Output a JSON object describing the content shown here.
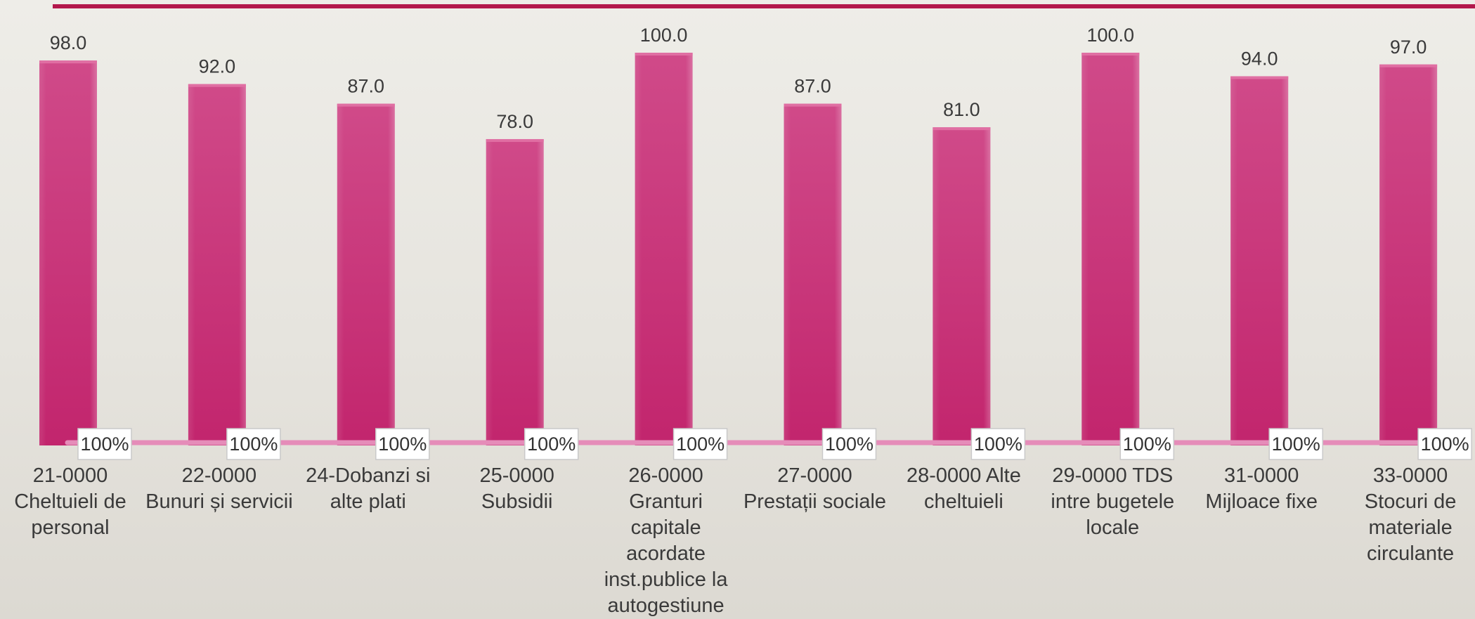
{
  "chart_data": {
    "type": "bar",
    "categories": [
      [
        "21-0000",
        "Cheltuieli de",
        "personal"
      ],
      [
        "22-0000",
        "Bunuri și servicii"
      ],
      [
        "24-Dobanzi si",
        "alte plati"
      ],
      [
        "25-0000",
        "Subsidii"
      ],
      [
        "26-0000",
        "Granturi",
        "capitale",
        "acordate",
        "inst.publice la",
        "autogestiune"
      ],
      [
        "27-0000",
        "Prestații sociale"
      ],
      [
        "28-0000  Alte",
        "cheltuieli"
      ],
      [
        "29-0000 TDS",
        "intre bugetele",
        "locale"
      ],
      [
        "31-0000",
        "Mijloace fixe"
      ],
      [
        "33-0000",
        "Stocuri de",
        "materiale",
        "circulante"
      ]
    ],
    "series": [
      {
        "values": [
          98.0,
          92.0,
          87.0,
          78.0,
          100.0,
          87.0,
          81.0,
          100.0,
          94.0,
          97.0
        ],
        "value_labels": [
          "98.0",
          "92.0",
          "87.0",
          "78.0",
          "100.0",
          "87.0",
          "81.0",
          "100.0",
          "94.0",
          "97.0"
        ]
      },
      {
        "values": [
          100,
          100,
          100,
          100,
          100,
          100,
          100,
          100,
          100,
          100
        ],
        "value_labels": [
          "100%",
          "100%",
          "100%",
          "100%",
          "100%",
          "100%",
          "100%",
          "100%",
          "100%",
          "100%"
        ]
      }
    ],
    "title": "",
    "xlabel": "",
    "ylabel": "",
    "ylim": [
      0,
      100
    ],
    "grid": false,
    "legend": "none",
    "colors": {
      "bar": "#c2256d",
      "bar_light": "#d04a89",
      "line": "#e58cb9",
      "top_rule": "#b3184c"
    }
  }
}
